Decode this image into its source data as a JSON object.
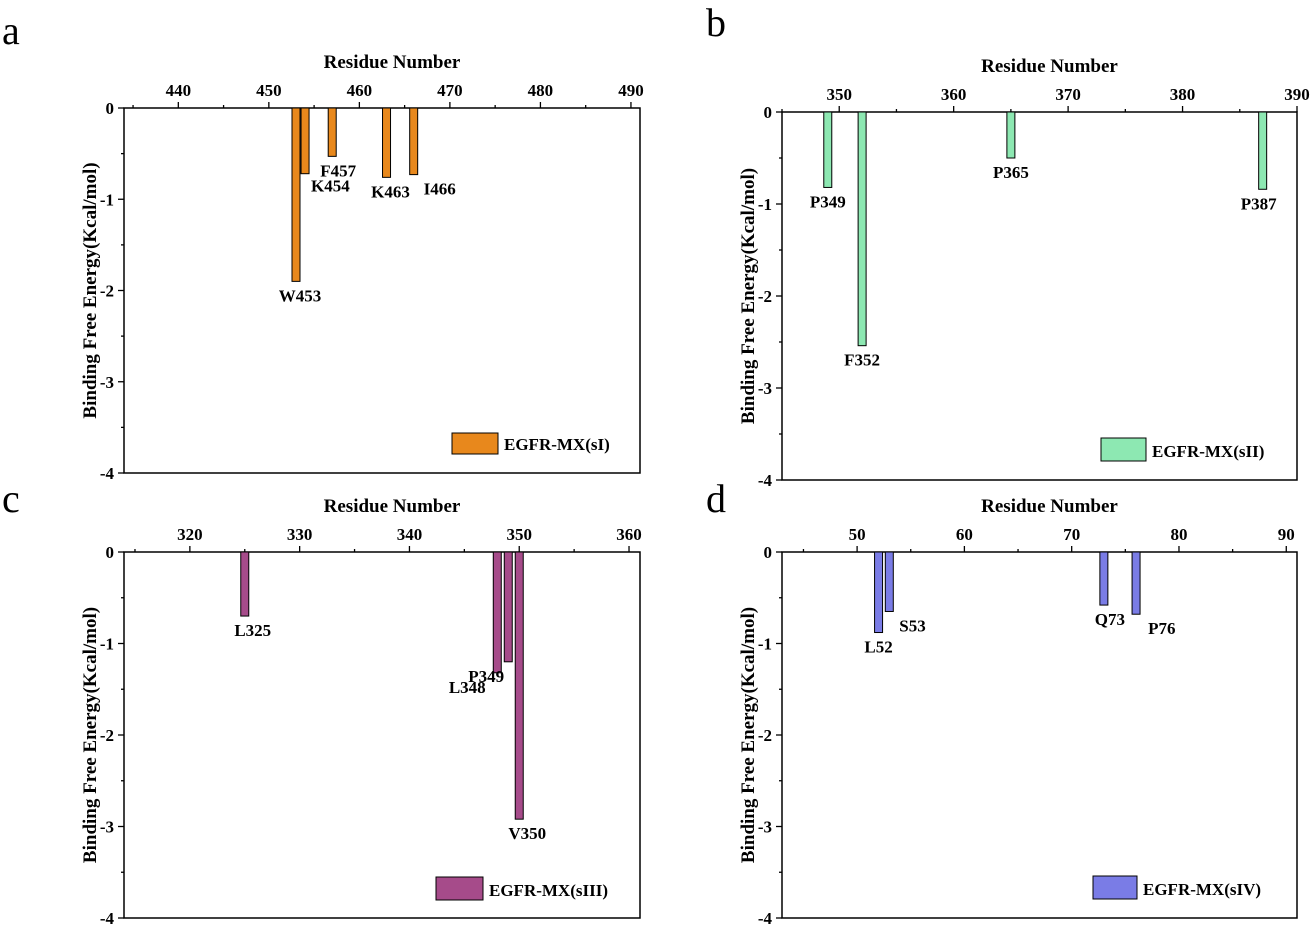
{
  "chart_data": [
    {
      "type": "bar",
      "panel_label": "a",
      "xlabel": "Residue Number",
      "ylabel": "Binding Free Energy(Kcal/mol)",
      "xlim": [
        434,
        491
      ],
      "ylim": [
        -4,
        0
      ],
      "x_ticks": [
        440,
        450,
        460,
        470,
        480,
        490
      ],
      "y_ticks": [
        0,
        -1,
        -2,
        -3,
        -4
      ],
      "x_axis_position": "top",
      "grid": false,
      "legend_position": "bottom-right",
      "series": [
        {
          "name": "EGFR-MX(sI)",
          "color": "#e8881c",
          "points": [
            {
              "x": 453,
              "y": -1.9,
              "label": "W453"
            },
            {
              "x": 454,
              "y": -0.72,
              "label": "K454"
            },
            {
              "x": 457,
              "y": -0.53,
              "label": "F457"
            },
            {
              "x": 463,
              "y": -0.76,
              "label": "K463"
            },
            {
              "x": 466,
              "y": -0.73,
              "label": "I466"
            }
          ]
        }
      ]
    },
    {
      "type": "bar",
      "panel_label": "b",
      "xlabel": "Residue Number",
      "ylabel": "Binding Free Energy(Kcal/mol)",
      "xlim": [
        345,
        390
      ],
      "ylim": [
        -4,
        0
      ],
      "x_ticks": [
        350,
        360,
        370,
        380,
        390
      ],
      "y_ticks": [
        0,
        -1,
        -2,
        -3,
        -4
      ],
      "x_axis_position": "top",
      "grid": false,
      "legend_position": "bottom-right",
      "series": [
        {
          "name": "EGFR-MX(sII)",
          "color": "#8de8b2",
          "points": [
            {
              "x": 349,
              "y": -0.82,
              "label": "P349"
            },
            {
              "x": 352,
              "y": -2.54,
              "label": "F352"
            },
            {
              "x": 365,
              "y": -0.5,
              "label": "P365"
            },
            {
              "x": 387,
              "y": -0.84,
              "label": "P387"
            }
          ]
        }
      ]
    },
    {
      "type": "bar",
      "panel_label": "c",
      "xlabel": "Residue Number",
      "ylabel": "Binding Free Energy(Kcal/mol)",
      "xlim": [
        314,
        361
      ],
      "ylim": [
        -4,
        0
      ],
      "x_ticks": [
        320,
        330,
        340,
        350,
        360
      ],
      "y_ticks": [
        0,
        -1,
        -2,
        -3,
        -4
      ],
      "x_axis_position": "top",
      "grid": false,
      "legend_position": "bottom-right",
      "series": [
        {
          "name": "EGFR-MX(sIII)",
          "color": "#a64b8a",
          "points": [
            {
              "x": 325,
              "y": -0.7,
              "label": "L325"
            },
            {
              "x": 348,
              "y": -1.32,
              "label": "L348"
            },
            {
              "x": 349,
              "y": -1.2,
              "label": "P349"
            },
            {
              "x": 350,
              "y": -2.92,
              "label": "V350"
            }
          ]
        }
      ]
    },
    {
      "type": "bar",
      "panel_label": "d",
      "xlabel": "Residue Number",
      "ylabel": "Binding Free Energy(Kcal/mol)",
      "xlim": [
        43,
        91
      ],
      "ylim": [
        -4,
        0
      ],
      "x_ticks": [
        50,
        60,
        70,
        80,
        90
      ],
      "y_ticks": [
        0,
        -1,
        -2,
        -3,
        -4
      ],
      "x_axis_position": "top",
      "grid": false,
      "legend_position": "bottom-right",
      "series": [
        {
          "name": "EGFR-MX(sIV)",
          "color": "#7a7ce6",
          "points": [
            {
              "x": 52,
              "y": -0.88,
              "label": "L52"
            },
            {
              "x": 53,
              "y": -0.65,
              "label": "S53"
            },
            {
              "x": 73,
              "y": -0.58,
              "label": "Q73"
            },
            {
              "x": 76,
              "y": -0.68,
              "label": "P76"
            }
          ]
        }
      ]
    }
  ]
}
